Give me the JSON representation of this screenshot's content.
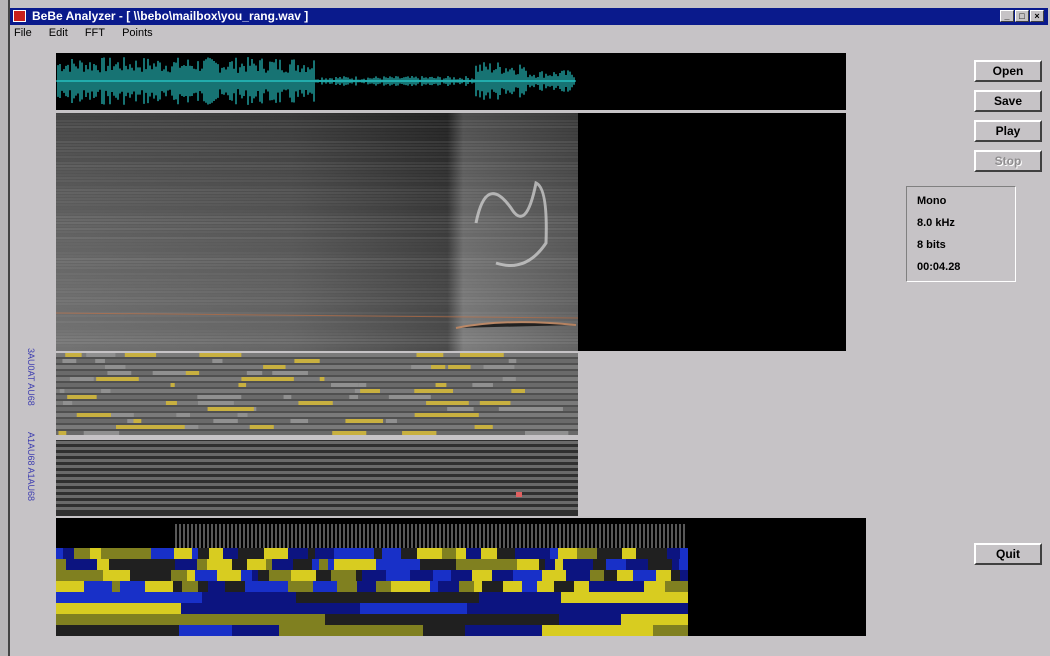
{
  "window": {
    "title": "BeBe Analyzer - [ \\\\bebo\\mailbox\\you_rang.wav ]",
    "controls": [
      "_",
      "□",
      "×"
    ]
  },
  "menu": [
    "File",
    "Edit",
    "FFT",
    "Points"
  ],
  "buttons": {
    "open": "Open",
    "save": "Save",
    "play": "Play",
    "stop": "Stop",
    "quit": "Quit"
  },
  "info": {
    "channels": "Mono",
    "sample_rate": "8.0 kHz",
    "bit_depth": "8 bits",
    "duration": "00:04.28"
  },
  "side_labels": {
    "top": "3AU0AT AU68",
    "bottom": "A1AU68 A1AU68"
  },
  "colors": {
    "titlebar": "#0a1a8c",
    "waveform": "#2ee6e6",
    "panel_bg": "#000000",
    "yellow": "#d8cc20",
    "blue": "#1830c8"
  }
}
